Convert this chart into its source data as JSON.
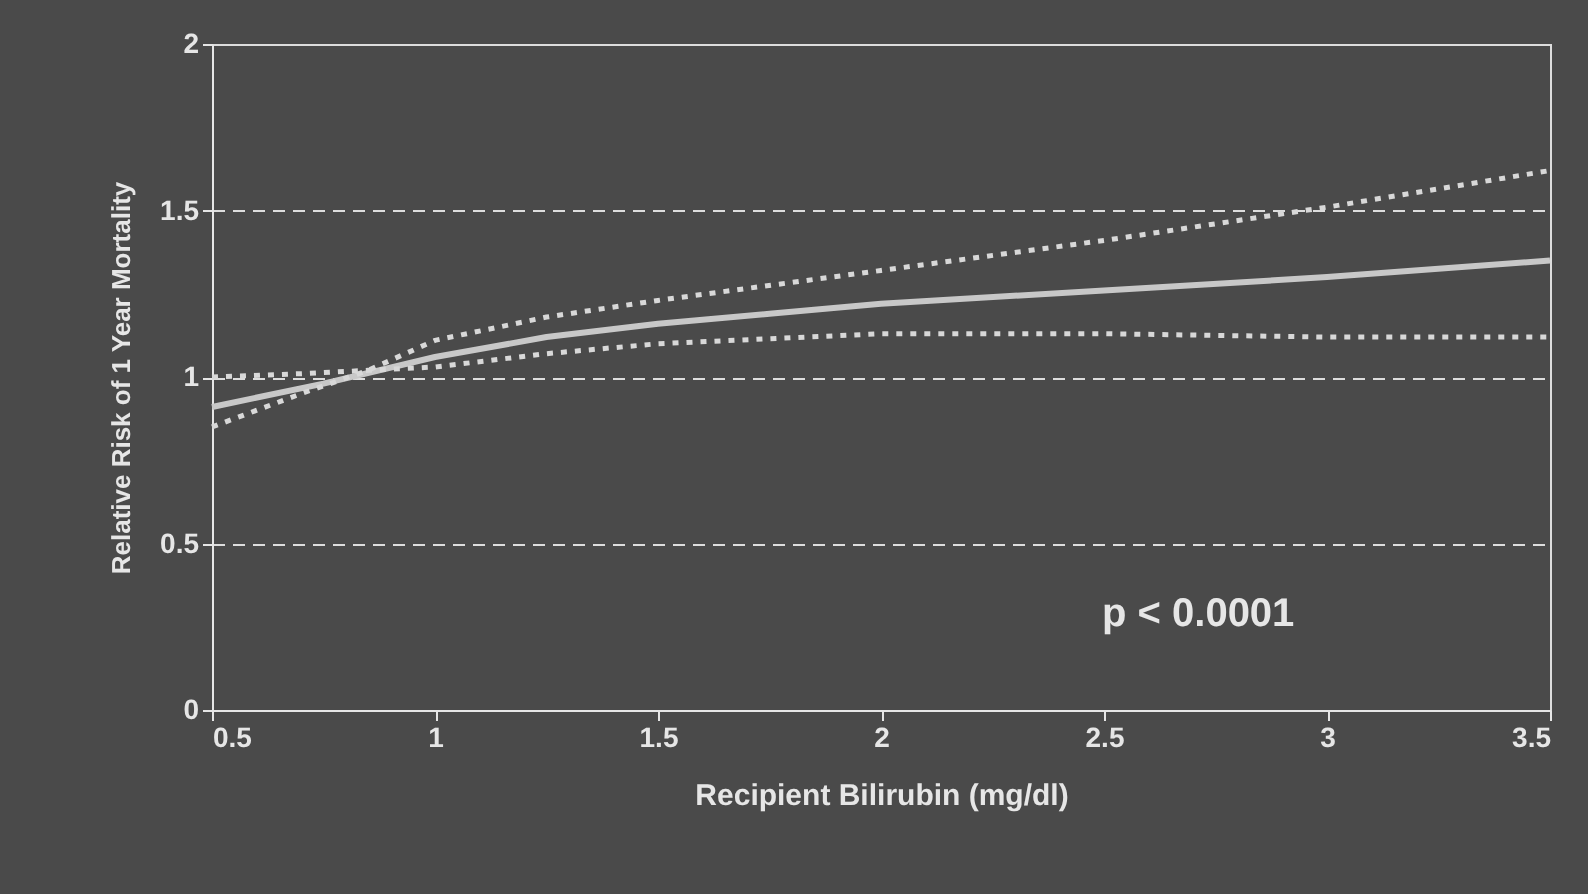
{
  "chart_data": {
    "type": "line",
    "xlabel": "Recipient Bilirubin (mg/dl)",
    "ylabel": "Relative Risk of 1 Year Mortality",
    "xlim": [
      0.5,
      3.5
    ],
    "xticks": [
      0.5,
      1,
      1.5,
      2,
      2.5,
      3,
      3.5
    ],
    "ylim": [
      0,
      2
    ],
    "yticks": [
      0,
      0.5,
      1,
      1.5,
      2
    ],
    "grid": "y",
    "marker": "none",
    "annotations": [
      "p < 0.0001"
    ],
    "series": [
      {
        "color": "#c8c8c8",
        "line_style": "solid",
        "x": [
          0.5,
          0.75,
          1,
          1.25,
          1.5,
          1.75,
          2,
          2.5,
          3,
          3.5
        ],
        "values": [
          0.91,
          0.98,
          1.06,
          1.12,
          1.16,
          1.19,
          1.22,
          1.26,
          1.3,
          1.35
        ]
      },
      {
        "color": "#d8d8d8",
        "line_style": "dotted",
        "x": [
          0.5,
          0.7,
          0.85,
          1,
          1.25,
          1.5,
          2,
          2.5,
          3,
          3.5
        ],
        "values": [
          0.85,
          0.95,
          1.02,
          1.11,
          1.18,
          1.23,
          1.32,
          1.41,
          1.51,
          1.62
        ]
      },
      {
        "color": "#d8d8d8",
        "line_style": "dotted",
        "x": [
          0.5,
          0.7,
          0.85,
          1,
          1.25,
          1.5,
          2,
          2.5,
          3,
          3.5
        ],
        "values": [
          1.0,
          1.01,
          1.02,
          1.03,
          1.07,
          1.1,
          1.13,
          1.13,
          1.12,
          1.12
        ]
      }
    ]
  }
}
